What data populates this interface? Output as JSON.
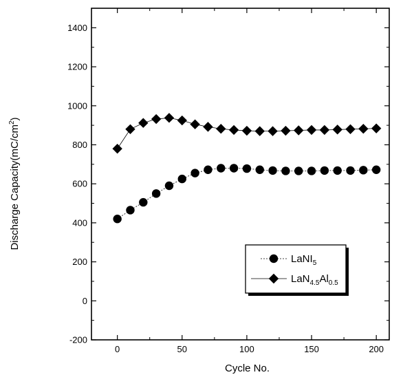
{
  "chart_data": {
    "type": "scatter",
    "title": "",
    "xlabel": "Cycle No.",
    "ylabel_main": "Discharge Capacity(mC/cm",
    "ylabel_sup": "2",
    "ylabel_close": ")",
    "xlim": [
      -20,
      210
    ],
    "ylim": [
      -200,
      1500
    ],
    "x_ticks": [
      0,
      50,
      100,
      150,
      200
    ],
    "y_ticks": [
      -200,
      0,
      200,
      400,
      600,
      800,
      1000,
      1200,
      1400
    ],
    "grid": false,
    "legend_position": "lower-right",
    "series": [
      {
        "name_main": "LaNI",
        "name_sub": "5",
        "marker": "circle",
        "line": "dashed",
        "x": [
          0,
          10,
          20,
          30,
          40,
          50,
          60,
          70,
          80,
          90,
          100,
          110,
          120,
          130,
          140,
          150,
          160,
          170,
          180,
          190,
          200
        ],
        "y": [
          420,
          465,
          505,
          550,
          590,
          625,
          655,
          672,
          680,
          680,
          678,
          672,
          668,
          666,
          666,
          666,
          668,
          668,
          668,
          670,
          672
        ]
      },
      {
        "name_parts": [
          {
            "text": "LaN",
            "sub": false
          },
          {
            "text": "4.5",
            "sub": true
          },
          {
            "text": "Al",
            "sub": false
          },
          {
            "text": "0.5",
            "sub": true
          }
        ],
        "marker": "diamond",
        "line": "solid",
        "x": [
          0,
          10,
          20,
          30,
          40,
          50,
          60,
          70,
          80,
          90,
          100,
          110,
          120,
          130,
          140,
          150,
          160,
          170,
          180,
          190,
          200
        ],
        "y": [
          780,
          880,
          912,
          932,
          938,
          925,
          905,
          892,
          882,
          876,
          872,
          870,
          870,
          872,
          874,
          876,
          876,
          878,
          880,
          882,
          884
        ]
      }
    ]
  }
}
